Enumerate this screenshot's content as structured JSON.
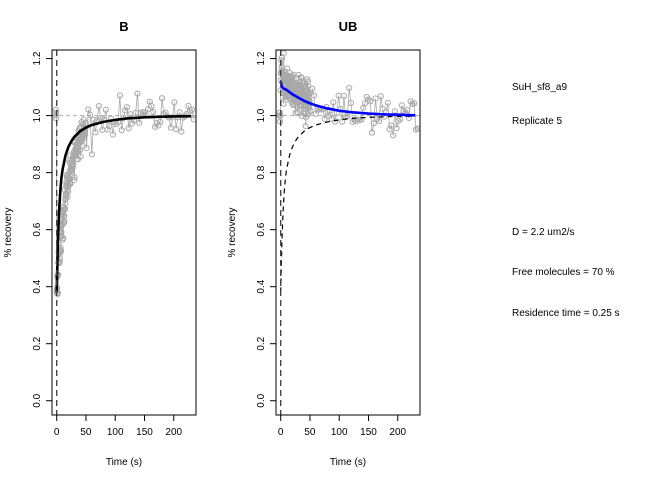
{
  "chart_data": [
    {
      "type": "scatter",
      "title": "B",
      "xlabel": "Time (s)",
      "ylabel": "% recovery",
      "xlim": [
        -8,
        238
      ],
      "ylim": [
        -0.05,
        1.23
      ],
      "xticks": [
        "0",
        "50",
        "100",
        "150",
        "200"
      ],
      "yticks": [
        "0.0",
        "0.2",
        "0.4",
        "0.6",
        "0.8",
        "1.0",
        "1.2"
      ],
      "grid": false,
      "reference_line_y": 1.0,
      "bleach_line_x": 0,
      "points_color": "#a9a9a9",
      "fit_color": "#000000",
      "pre_bleach": {
        "x": [
          -2,
          -1.5,
          -1,
          -0.5
        ],
        "y": [
          1.0,
          1.02,
          0.99,
          1.01
        ]
      },
      "recovery_model": {
        "kind": "exp_rise",
        "y0": 0.38,
        "plateau": 1.0,
        "tau_s": 20,
        "noise": 0.03
      },
      "fit": {
        "x": [
          0,
          2,
          4,
          6,
          8,
          10,
          15,
          20,
          25,
          30,
          40,
          50,
          60,
          80,
          100,
          120,
          150,
          180,
          200,
          230
        ],
        "y": [
          0.38,
          0.55,
          0.66,
          0.73,
          0.78,
          0.81,
          0.86,
          0.89,
          0.91,
          0.925,
          0.945,
          0.958,
          0.967,
          0.978,
          0.985,
          0.99,
          0.994,
          0.996,
          0.997,
          0.998
        ]
      }
    },
    {
      "type": "scatter",
      "title": "UB",
      "xlabel": "Time (s)",
      "ylabel": "% recovery",
      "xlim": [
        -8,
        238
      ],
      "ylim": [
        -0.05,
        1.23
      ],
      "xticks": [
        "0",
        "50",
        "100",
        "150",
        "200"
      ],
      "yticks": [
        "0.0",
        "0.2",
        "0.4",
        "0.6",
        "0.8",
        "1.0",
        "1.2"
      ],
      "grid": false,
      "reference_line_y": 1.0,
      "bleach_line_x": 0,
      "points_color": "#a9a9a9",
      "fit_color": "#0000ff",
      "pre_bleach": {
        "x": [
          -2,
          -1.5,
          -1,
          -0.5
        ],
        "y": [
          1.0,
          1.01,
          0.98,
          1.0
        ]
      },
      "recovery_model": {
        "kind": "exp_decay",
        "start": 1.13,
        "plateau": 1.0,
        "tau_s": 55,
        "noise": 0.035
      },
      "fit": {
        "x": [
          0,
          2,
          5,
          10,
          20,
          30,
          40,
          50,
          60,
          80,
          100,
          120,
          150,
          180,
          200,
          230
        ],
        "y": [
          1.12,
          1.1,
          1.095,
          1.09,
          1.075,
          1.063,
          1.052,
          1.043,
          1.036,
          1.025,
          1.017,
          1.012,
          1.007,
          1.004,
          1.003,
          1.001
        ]
      },
      "comparison_curve": {
        "style": "dashed",
        "x": [
          0,
          2,
          4,
          6,
          8,
          10,
          15,
          20,
          25,
          30,
          40,
          50,
          60,
          80,
          100,
          120,
          150,
          180,
          200,
          230
        ],
        "y": [
          0.38,
          0.55,
          0.66,
          0.73,
          0.78,
          0.81,
          0.86,
          0.89,
          0.91,
          0.925,
          0.945,
          0.958,
          0.967,
          0.978,
          0.985,
          0.99,
          0.994,
          0.996,
          0.997,
          0.998
        ]
      }
    }
  ],
  "annotations": {
    "sample": "SuH_sf8_a9",
    "replicate": "Replicate 5",
    "diffusion": "D = 2.2 um2/s",
    "free_molecules": "Free molecules = 70 %",
    "residence_time": "Residence time = 0.25 s"
  }
}
